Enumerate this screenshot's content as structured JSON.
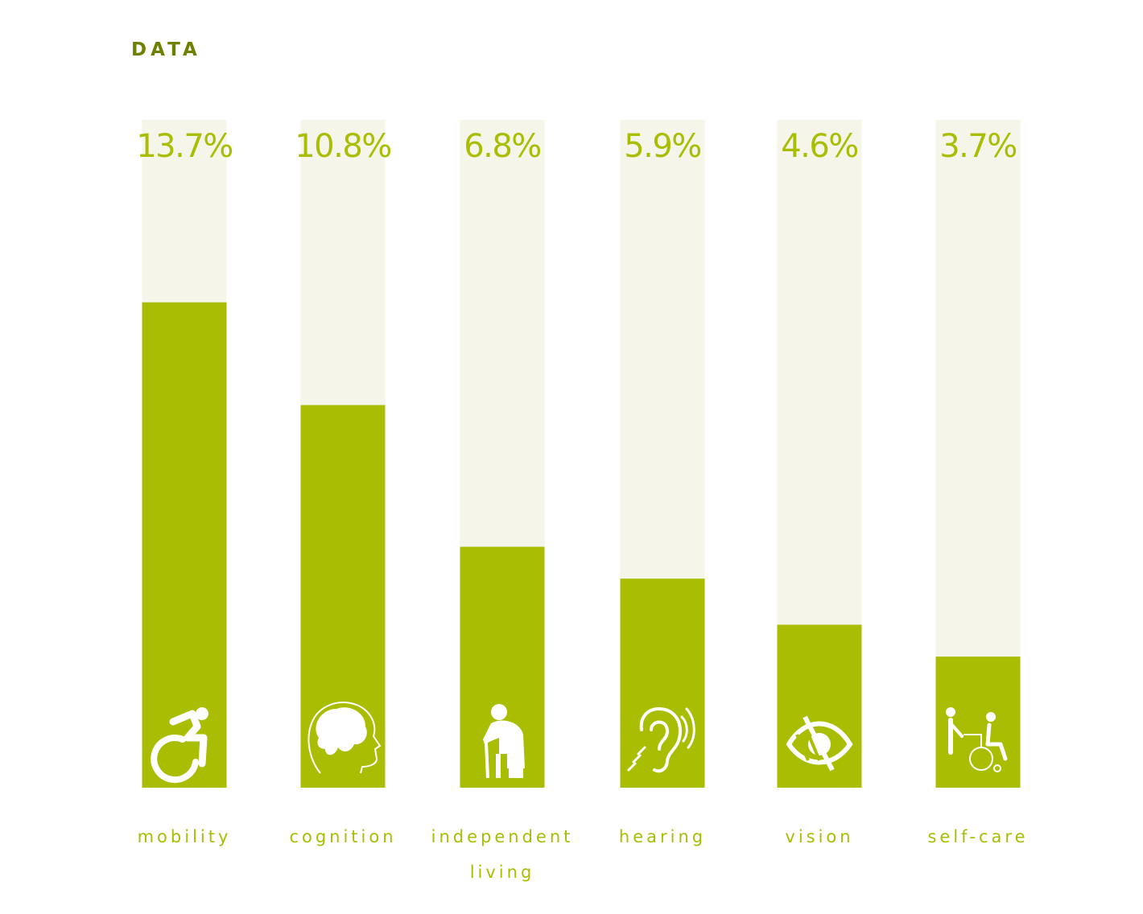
{
  "title": "DATA",
  "colors": {
    "accent": "#a9bd02",
    "track": "#f5f5ea",
    "icon": "#ffffff",
    "background": "#ffffff"
  },
  "chart_data": {
    "type": "bar",
    "categories": [
      "mobility",
      "cognition",
      "independent living",
      "hearing",
      "vision",
      "self-care"
    ],
    "category_lines": [
      [
        "mobility"
      ],
      [
        "cognition"
      ],
      [
        "independent",
        "living"
      ],
      [
        "hearing"
      ],
      [
        "vision"
      ],
      [
        "self-care"
      ]
    ],
    "values": [
      13.7,
      10.8,
      6.8,
      5.9,
      4.6,
      3.7
    ],
    "value_labels": [
      "13.7%",
      "10.8%",
      "6.8%",
      "5.9%",
      "4.6%",
      "3.7%"
    ],
    "icons": [
      "wheelchair-icon",
      "brain-head-icon",
      "elderly-person-cane-icon",
      "hearing-ear-icon",
      "low-vision-eye-icon",
      "caregiver-wheelchair-icon"
    ],
    "unit": "%",
    "ylim": [
      0,
      18.85
    ],
    "grid": false,
    "legend": "none"
  }
}
